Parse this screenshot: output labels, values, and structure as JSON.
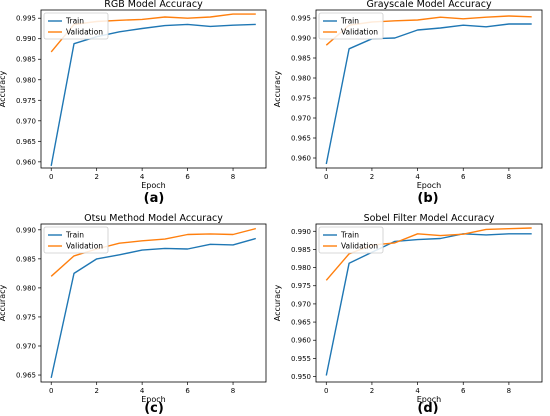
{
  "chart_data": [
    {
      "type": "line",
      "panel_label": "(a)",
      "title": "RGB Model Accuracy",
      "xlabel": "Epoch",
      "ylabel": "Accuracy",
      "x": [
        0,
        1,
        2,
        3,
        4,
        5,
        6,
        7,
        8,
        9
      ],
      "xticks": [
        "0",
        "2",
        "4",
        "6",
        "8"
      ],
      "xtick_values": [
        0,
        2,
        4,
        6,
        8
      ],
      "ylim": [
        0.9585,
        0.997
      ],
      "yticks": [
        "0.960",
        "0.965",
        "0.970",
        "0.975",
        "0.980",
        "0.985",
        "0.990",
        "0.995"
      ],
      "ytick_values": [
        0.96,
        0.965,
        0.97,
        0.975,
        0.98,
        0.985,
        0.99,
        0.995
      ],
      "legend_position": "upper-left",
      "series": [
        {
          "name": "Train",
          "color": "#1f77b4",
          "values": [
            0.959,
            0.9888,
            0.9905,
            0.9917,
            0.9925,
            0.9932,
            0.9935,
            0.993,
            0.9933,
            0.9935
          ]
        },
        {
          "name": "Validation",
          "color": "#ff7f0e",
          "values": [
            0.9868,
            0.9935,
            0.9942,
            0.9945,
            0.9947,
            0.9953,
            0.995,
            0.9953,
            0.996,
            0.996
          ]
        }
      ]
    },
    {
      "type": "line",
      "panel_label": "(b)",
      "title": "Grayscale Model Accuracy",
      "xlabel": "Epoch",
      "ylabel": "Accuracy",
      "x": [
        0,
        1,
        2,
        3,
        4,
        5,
        6,
        7,
        8,
        9
      ],
      "xticks": [
        "0",
        "2",
        "4",
        "6",
        "8"
      ],
      "xtick_values": [
        0,
        2,
        4,
        6,
        8
      ],
      "ylim": [
        0.9575,
        0.997
      ],
      "yticks": [
        "0.960",
        "0.965",
        "0.970",
        "0.975",
        "0.980",
        "0.985",
        "0.990",
        "0.995"
      ],
      "ytick_values": [
        0.96,
        0.965,
        0.97,
        0.975,
        0.98,
        0.985,
        0.99,
        0.995
      ],
      "legend_position": "upper-left",
      "series": [
        {
          "name": "Train",
          "color": "#1f77b4",
          "values": [
            0.9585,
            0.9873,
            0.9898,
            0.99,
            0.992,
            0.9925,
            0.9932,
            0.9928,
            0.9935,
            0.9935
          ]
        },
        {
          "name": "Validation",
          "color": "#ff7f0e",
          "values": [
            0.9882,
            0.9932,
            0.994,
            0.9943,
            0.9945,
            0.9952,
            0.9948,
            0.9952,
            0.9955,
            0.9953
          ]
        }
      ]
    },
    {
      "type": "line",
      "panel_label": "(c)",
      "title": "Otsu Method Model Accuracy",
      "xlabel": "Epoch",
      "ylabel": "Accuracy",
      "x": [
        0,
        1,
        2,
        3,
        4,
        5,
        6,
        7,
        8,
        9
      ],
      "xticks": [
        "0",
        "2",
        "4",
        "6",
        "8"
      ],
      "xtick_values": [
        0,
        2,
        4,
        6,
        8
      ],
      "ylim": [
        0.9638,
        0.991
      ],
      "yticks": [
        "0.965",
        "0.970",
        "0.975",
        "0.980",
        "0.985",
        "0.990"
      ],
      "ytick_values": [
        0.965,
        0.97,
        0.975,
        0.98,
        0.985,
        0.99
      ],
      "legend_position": "upper-left",
      "series": [
        {
          "name": "Train",
          "color": "#1f77b4",
          "values": [
            0.9645,
            0.9825,
            0.985,
            0.9857,
            0.9865,
            0.9868,
            0.9867,
            0.9875,
            0.9874,
            0.9885
          ]
        },
        {
          "name": "Validation",
          "color": "#ff7f0e",
          "values": [
            0.982,
            0.9855,
            0.9867,
            0.9877,
            0.9881,
            0.9884,
            0.9892,
            0.9893,
            0.9892,
            0.9902
          ]
        }
      ]
    },
    {
      "type": "line",
      "panel_label": "(d)",
      "title": "Sobel Filter Model Accuracy",
      "xlabel": "Epoch",
      "ylabel": "Accuracy",
      "x": [
        0,
        1,
        2,
        3,
        4,
        5,
        6,
        7,
        8,
        9
      ],
      "xticks": [
        "0",
        "2",
        "4",
        "6",
        "8"
      ],
      "xtick_values": [
        0,
        2,
        4,
        6,
        8
      ],
      "ylim": [
        0.9485,
        0.992
      ],
      "yticks": [
        "0.950",
        "0.955",
        "0.960",
        "0.965",
        "0.970",
        "0.975",
        "0.980",
        "0.985",
        "0.990"
      ],
      "ytick_values": [
        0.95,
        0.955,
        0.96,
        0.965,
        0.97,
        0.975,
        0.98,
        0.985,
        0.99
      ],
      "legend_position": "upper-left",
      "series": [
        {
          "name": "Train",
          "color": "#1f77b4",
          "values": [
            0.9503,
            0.9812,
            0.9842,
            0.9872,
            0.9877,
            0.988,
            0.9893,
            0.989,
            0.9893,
            0.9893
          ]
        },
        {
          "name": "Validation",
          "color": "#ff7f0e",
          "values": [
            0.9765,
            0.9838,
            0.9862,
            0.9868,
            0.9893,
            0.9888,
            0.9892,
            0.9905,
            0.9907,
            0.9909
          ]
        }
      ]
    }
  ]
}
